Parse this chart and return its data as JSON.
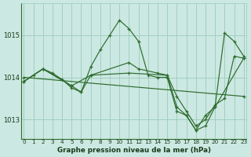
{
  "background_color": "#cce8e2",
  "grid_color": "#99ccbb",
  "line_color": "#2d6b2d",
  "text_color": "#1a3a1a",
  "xlabel": "Graphe pression niveau de la mer (hPa)",
  "xlim": [
    -0.3,
    23.3
  ],
  "ylim": [
    1012.55,
    1015.75
  ],
  "yticks": [
    1013,
    1014,
    1015
  ],
  "xticks": [
    0,
    1,
    2,
    3,
    4,
    5,
    6,
    7,
    8,
    9,
    10,
    11,
    12,
    13,
    14,
    15,
    16,
    17,
    18,
    19,
    20,
    21,
    22,
    23
  ],
  "line1_x": [
    0,
    1,
    2,
    3,
    4,
    5,
    6,
    7,
    8,
    9,
    10,
    11,
    12,
    13,
    14,
    15,
    16,
    17,
    18,
    19,
    20,
    21,
    22,
    23
  ],
  "line1_y": [
    1013.9,
    1014.05,
    1014.2,
    1014.1,
    1013.95,
    1013.75,
    1013.65,
    1014.25,
    1014.65,
    1015.0,
    1015.35,
    1015.15,
    1014.85,
    1014.05,
    1014.0,
    1014.0,
    1013.2,
    1013.1,
    1012.75,
    1013.1,
    1013.3,
    1015.05,
    1014.85,
    1014.5
  ],
  "line2_x": [
    0,
    23
  ],
  "line2_y": [
    1014.0,
    1013.55
  ],
  "line3_x": [
    0,
    2,
    5,
    7,
    11,
    12,
    14,
    15,
    16,
    17,
    18,
    19,
    20,
    21,
    22,
    23
  ],
  "line3_y": [
    1013.9,
    1014.2,
    1013.8,
    1014.05,
    1014.35,
    1014.2,
    1014.1,
    1014.05,
    1013.55,
    1013.2,
    1012.85,
    1013.0,
    1013.35,
    1013.5,
    1014.5,
    1014.45
  ],
  "line4_x": [
    0,
    2,
    5,
    6,
    7,
    11,
    15,
    16,
    17,
    18,
    19,
    20,
    23
  ],
  "line4_y": [
    1013.9,
    1014.2,
    1013.8,
    1013.65,
    1014.05,
    1014.1,
    1014.05,
    1013.3,
    1013.1,
    1012.75,
    1012.85,
    1013.3,
    1014.45
  ]
}
